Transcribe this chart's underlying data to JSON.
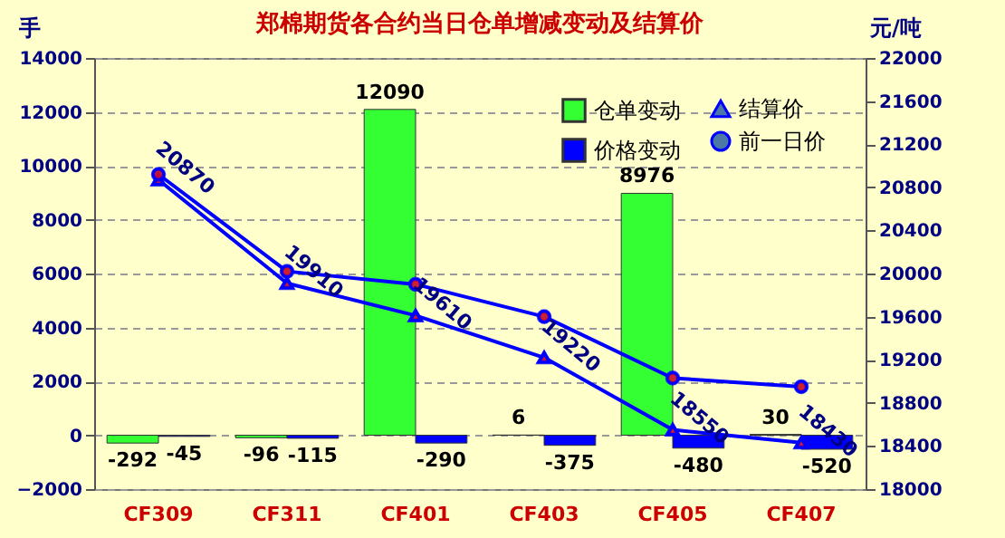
{
  "chart_data": {
    "type": "bar",
    "title": "郑棉期货各合约当日仓单增减变动及结算价",
    "ylabel": "手",
    "y2label": "元/吨",
    "categories": [
      "CF309",
      "CF311",
      "CF401",
      "CF403",
      "CF405",
      "CF407"
    ],
    "series": [
      {
        "name": "仓单变动",
        "color": "#33ff33",
        "values": [
          -292,
          -96,
          12090,
          6,
          8976,
          30
        ],
        "value_labels": [
          "-292",
          "-96",
          "12090",
          "6",
          "8976",
          "30"
        ]
      },
      {
        "name": "价格变动",
        "color": "#0000ff",
        "values": [
          -45,
          -115,
          -290,
          -375,
          -480,
          -520
        ],
        "value_labels": [
          "-45",
          "-115",
          "-290",
          "-375",
          "-480",
          "-520"
        ]
      },
      {
        "name": "结算价",
        "type": "line",
        "axis": "y2",
        "color": "#0000ff",
        "marker": "triangle",
        "values": [
          20870,
          19910,
          19610,
          19220,
          18550,
          18430
        ],
        "value_labels": [
          "20870",
          "19910",
          "19610",
          "19220",
          "18550",
          "18430"
        ]
      },
      {
        "name": "前一日价",
        "type": "line",
        "axis": "y2",
        "color": "#0000ff",
        "marker": "circle",
        "values": [
          20920,
          20020,
          19900,
          19600,
          19030,
          18950
        ]
      }
    ],
    "ylim": [
      -2000,
      14000
    ],
    "yticks": [
      -2000,
      0,
      2000,
      4000,
      6000,
      8000,
      10000,
      12000,
      14000
    ],
    "y2lim": [
      18000,
      22000
    ],
    "y2ticks": [
      18000,
      18400,
      18800,
      19200,
      19600,
      20000,
      20400,
      20800,
      21200,
      21600,
      22000
    ],
    "grid": "y",
    "legend": "top right"
  }
}
